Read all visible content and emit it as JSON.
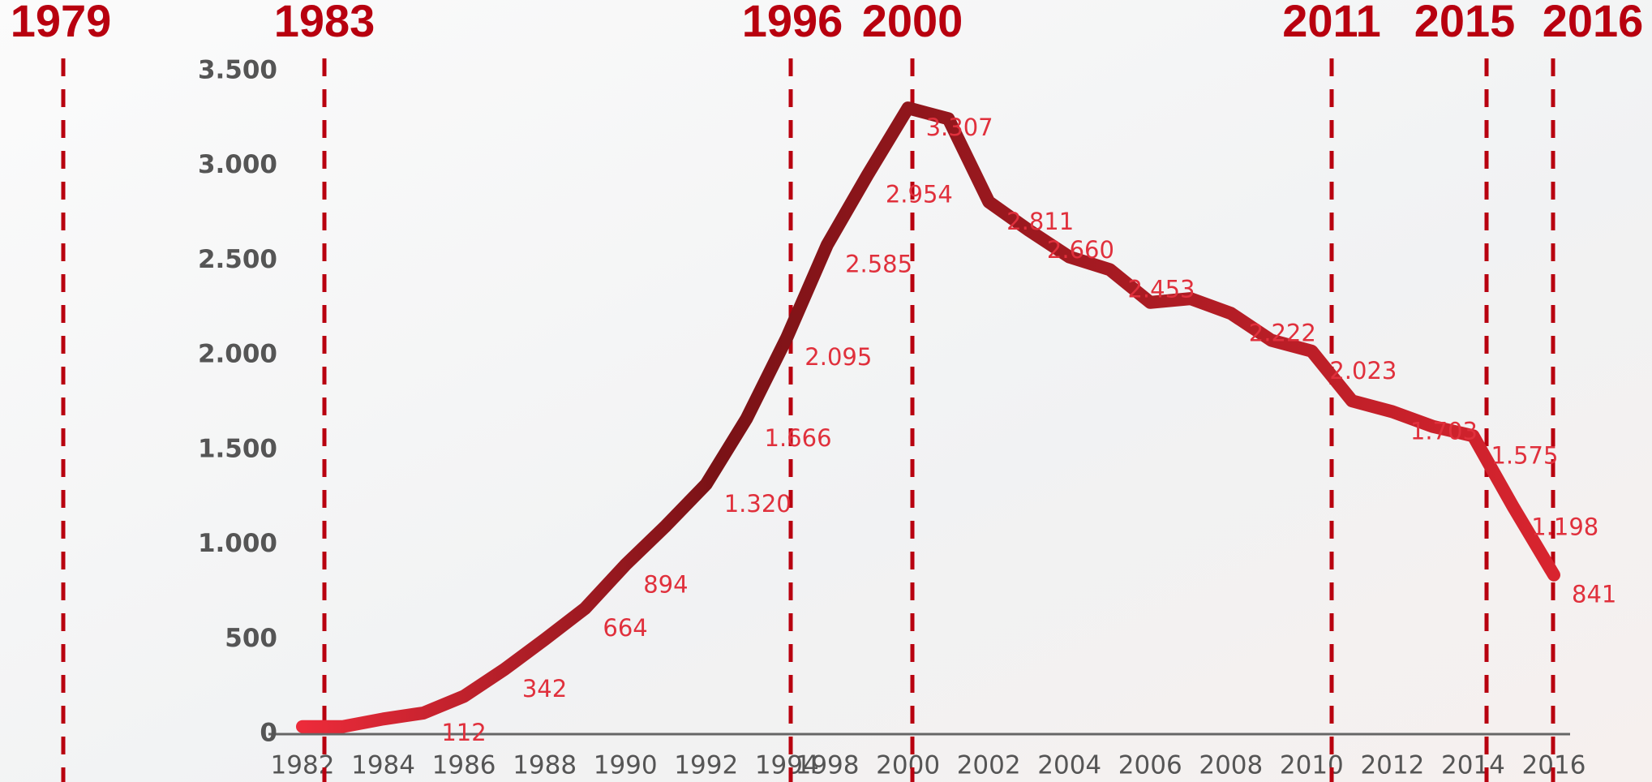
{
  "chart_data": {
    "type": "line",
    "categories": [
      "1982",
      null,
      "1984",
      null,
      "1986",
      null,
      "1988",
      null,
      "1990",
      null,
      "1992",
      null,
      "1994",
      "1998",
      null,
      "2000",
      null,
      "2002",
      null,
      "2004",
      null,
      "2006",
      null,
      "2008",
      null,
      "2010",
      null,
      "2012",
      null,
      "2014",
      null,
      "2016"
    ],
    "values": [
      40,
      40,
      80,
      112,
      200,
      342,
      500,
      664,
      894,
      1100,
      1320,
      1666,
      2095,
      2585,
      2954,
      3307,
      3250,
      2811,
      2660,
      2520,
      2453,
      2280,
      2300,
      2222,
      2080,
      2023,
      1760,
      1703,
      1625,
      1575,
      1198,
      841
    ],
    "value_labels": [
      null,
      null,
      null,
      "112",
      null,
      "342",
      null,
      "664",
      "894",
      null,
      "1.320",
      "1.666",
      "2.095",
      "2.585",
      "2.954",
      "3.307",
      null,
      "2.811",
      "2.660",
      null,
      "2.453",
      null,
      null,
      "2.222",
      null,
      "2.023",
      null,
      "1.703",
      null,
      "1.575",
      "1.198",
      "841"
    ],
    "gradient": [
      "#ec2b3a",
      "#7a1216",
      "#d8242f"
    ],
    "label_color": "#e0303c",
    "ylim": [
      0,
      3500
    ],
    "yticks": [
      0,
      500,
      {
        "value": 1000,
        "label": "1.000"
      },
      {
        "value": 1500,
        "label": "1.500"
      },
      {
        "value": 2000,
        "label": "2.000"
      },
      {
        "value": 2500,
        "label": "2.500"
      },
      {
        "value": 3000,
        "label": "3.000"
      },
      {
        "value": 3500,
        "label": "3.500"
      }
    ],
    "markers": [
      "1979",
      "1983",
      "1996",
      "2000",
      "2011",
      "2015",
      "2016"
    ],
    "marker_color": "#b8000f"
  }
}
